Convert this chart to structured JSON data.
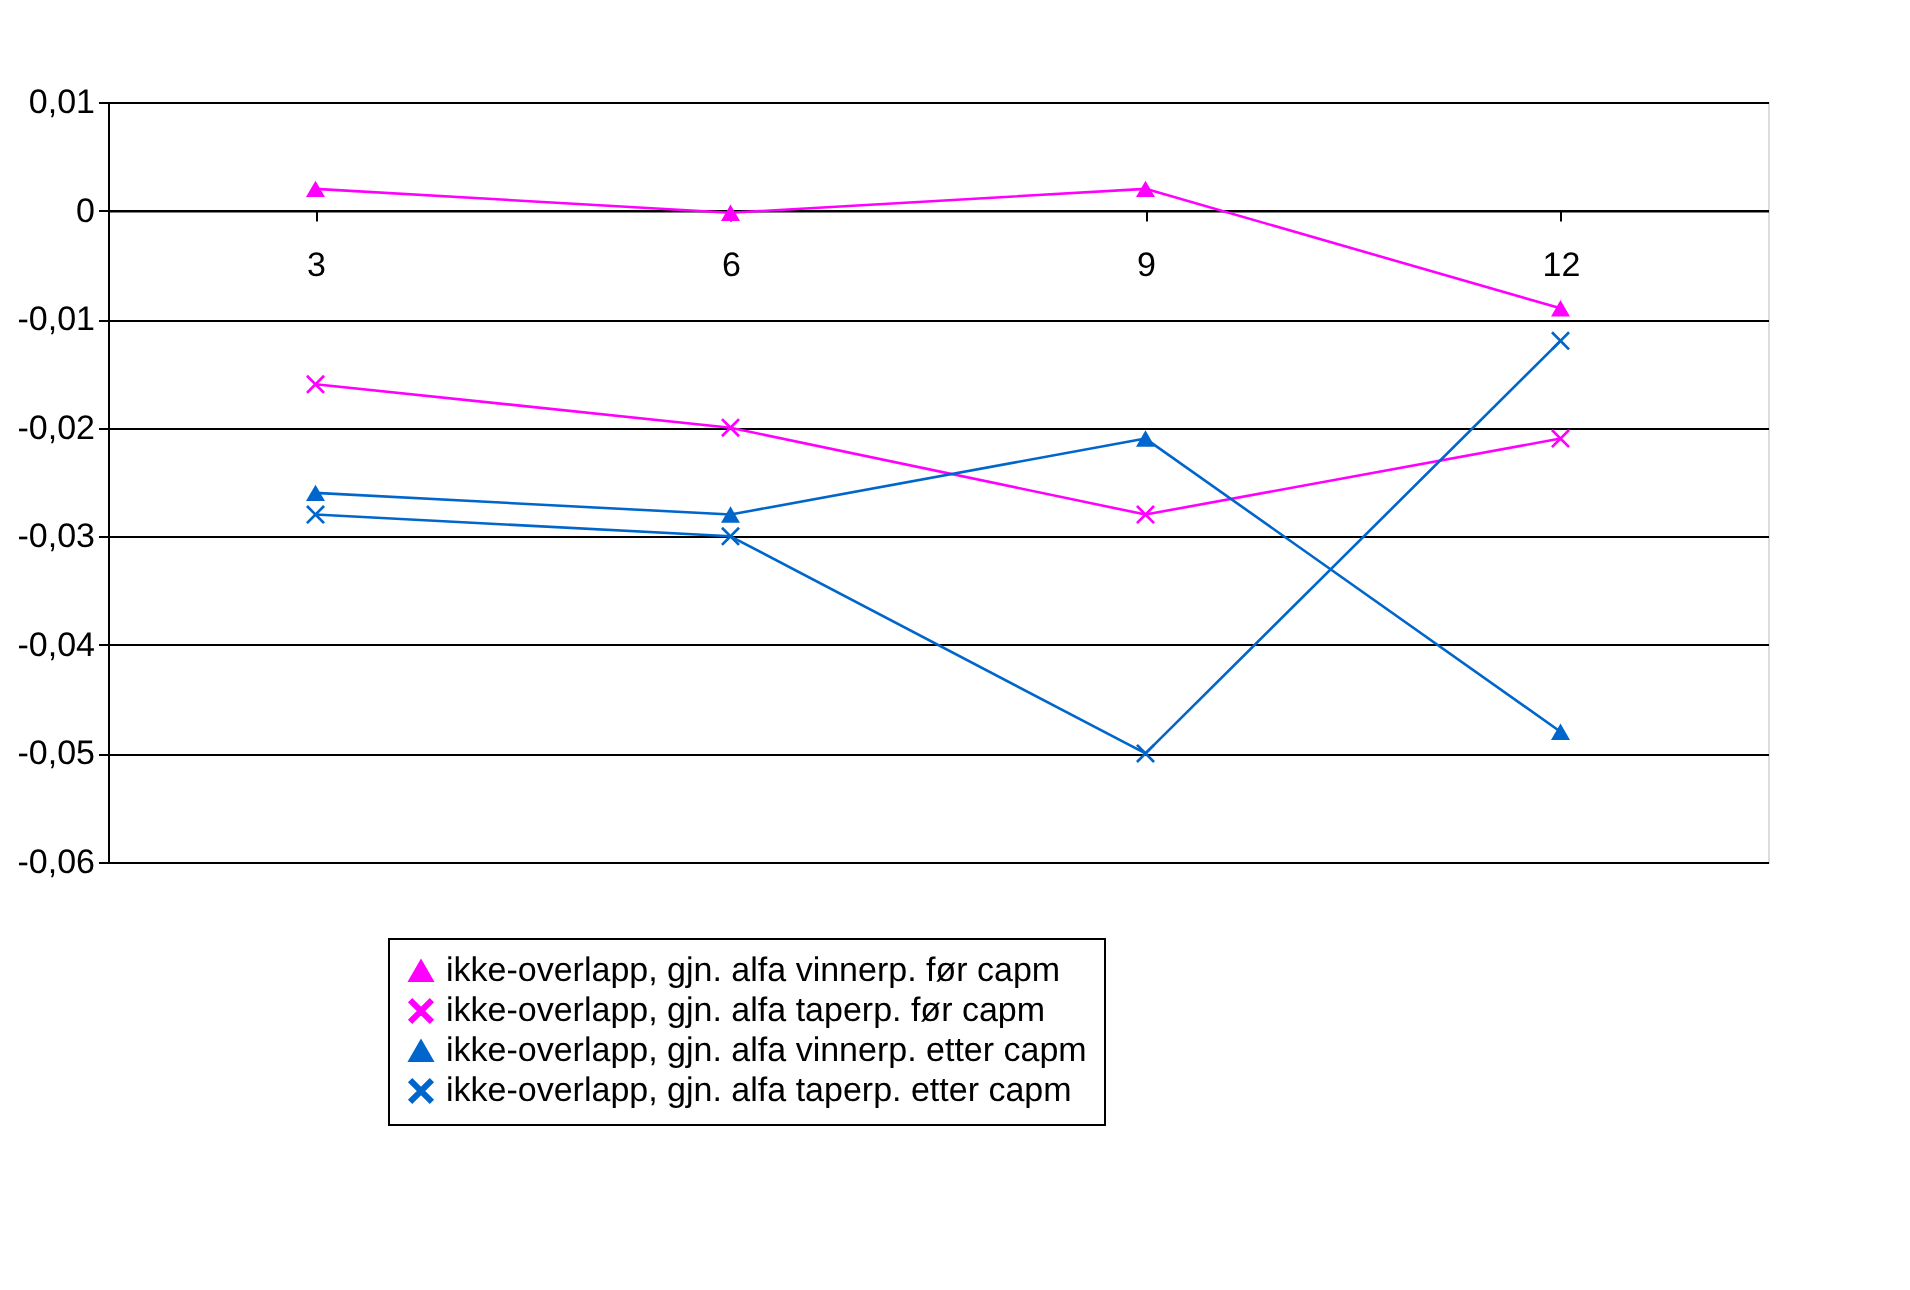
{
  "chart_data": {
    "type": "line",
    "categories": [
      "3",
      "6",
      "9",
      "12"
    ],
    "ylim": [
      -0.06,
      0.01
    ],
    "yticks": [
      {
        "value": 0.01,
        "label": "0,01"
      },
      {
        "value": 0,
        "label": "0"
      },
      {
        "value": -0.01,
        "label": "-0,01"
      },
      {
        "value": -0.02,
        "label": "-0,02"
      },
      {
        "value": -0.03,
        "label": "-0,03"
      },
      {
        "value": -0.04,
        "label": "-0,04"
      },
      {
        "value": -0.05,
        "label": "-0,05"
      },
      {
        "value": -0.06,
        "label": "-0,06"
      }
    ],
    "grid": "y",
    "legend": "bottom",
    "line_style": "solid",
    "series": [
      {
        "name": "ikke-overlapp, gjn. alfa vinnerp.  før capm",
        "color": "#ff00ff",
        "marker": "triangle",
        "values": [
          0.002,
          -0.0002,
          0.002,
          -0.009
        ]
      },
      {
        "name": "ikke-overlapp, gjn. alfa taperp. før capm",
        "color": "#ff00ff",
        "marker": "cross",
        "values": [
          -0.016,
          -0.02,
          -0.028,
          -0.021
        ]
      },
      {
        "name": "ikke-overlapp, gjn. alfa vinnerp. etter capm",
        "color": "#0066cc",
        "marker": "triangle",
        "values": [
          -0.026,
          -0.028,
          -0.021,
          -0.048
        ]
      },
      {
        "name": "ikke-overlapp, gjn. alfa taperp. etter capm",
        "color": "#0066cc",
        "marker": "cross",
        "values": [
          -0.028,
          -0.03,
          -0.05,
          -0.012
        ]
      }
    ]
  }
}
